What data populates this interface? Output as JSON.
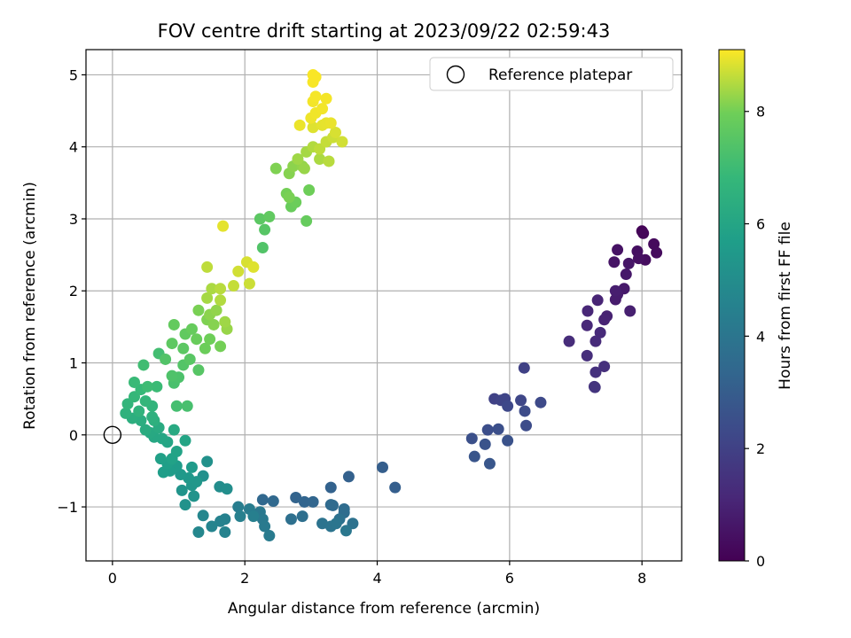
{
  "chart_data": {
    "type": "scatter",
    "title": "FOV centre drift starting at 2023/09/22 02:59:43",
    "xlabel": "Angular distance from reference (arcmin)",
    "ylabel": "Rotation from reference (arcmin)",
    "xlim": [
      -0.4,
      8.6
    ],
    "ylim": [
      -1.75,
      5.35
    ],
    "xticks": [
      0,
      2,
      4,
      6,
      8
    ],
    "yticks": [
      -1,
      0,
      1,
      2,
      3,
      4,
      5
    ],
    "xtick_labels": [
      "0",
      "2",
      "4",
      "6",
      "8"
    ],
    "ytick_labels": [
      "−1",
      "0",
      "1",
      "2",
      "3",
      "4",
      "5"
    ],
    "grid": true,
    "colormap": "viridis",
    "colorbar": {
      "label": "Hours from first FF file",
      "range": [
        0,
        9.1
      ],
      "ticks": [
        0,
        2,
        4,
        6,
        8
      ],
      "tick_labels": [
        "0",
        "2",
        "4",
        "6",
        "8"
      ]
    },
    "legend": {
      "position": "top-right",
      "entries": [
        "Reference platepar"
      ]
    },
    "reference_point": {
      "x": 0,
      "y": 0
    },
    "series": [
      {
        "points": [
          {
            "x": 8.0,
            "y": 2.83,
            "c": 0.1
          },
          {
            "x": 8.02,
            "y": 2.8,
            "c": 0.15
          },
          {
            "x": 8.18,
            "y": 2.65,
            "c": 0.25
          },
          {
            "x": 8.22,
            "y": 2.53,
            "c": 0.3
          },
          {
            "x": 8.05,
            "y": 2.43,
            "c": 0.35
          },
          {
            "x": 7.93,
            "y": 2.55,
            "c": 0.4
          },
          {
            "x": 7.95,
            "y": 2.45,
            "c": 0.45
          },
          {
            "x": 7.63,
            "y": 2.57,
            "c": 0.5
          },
          {
            "x": 7.58,
            "y": 2.4,
            "c": 0.55
          },
          {
            "x": 7.8,
            "y": 2.38,
            "c": 0.6
          },
          {
            "x": 7.76,
            "y": 2.23,
            "c": 0.65
          },
          {
            "x": 7.73,
            "y": 2.03,
            "c": 0.7
          },
          {
            "x": 7.63,
            "y": 1.95,
            "c": 0.75
          },
          {
            "x": 7.6,
            "y": 1.88,
            "c": 0.8
          },
          {
            "x": 7.6,
            "y": 2.0,
            "c": 0.85
          },
          {
            "x": 7.82,
            "y": 1.72,
            "c": 0.9
          },
          {
            "x": 7.47,
            "y": 1.65,
            "c": 0.95
          },
          {
            "x": 7.43,
            "y": 1.6,
            "c": 1.0
          },
          {
            "x": 7.33,
            "y": 1.87,
            "c": 1.05
          },
          {
            "x": 7.18,
            "y": 1.72,
            "c": 1.1
          },
          {
            "x": 7.17,
            "y": 1.52,
            "c": 1.15
          },
          {
            "x": 7.37,
            "y": 1.42,
            "c": 1.2
          },
          {
            "x": 7.3,
            "y": 1.3,
            "c": 1.25
          },
          {
            "x": 6.9,
            "y": 1.3,
            "c": 1.3
          },
          {
            "x": 7.17,
            "y": 1.1,
            "c": 1.35
          },
          {
            "x": 7.43,
            "y": 0.95,
            "c": 1.4
          },
          {
            "x": 7.3,
            "y": 0.87,
            "c": 1.45
          },
          {
            "x": 7.28,
            "y": 0.67,
            "c": 1.5
          },
          {
            "x": 7.29,
            "y": 0.66,
            "c": 1.55
          },
          {
            "x": 6.22,
            "y": 0.93,
            "c": 2.0
          },
          {
            "x": 5.77,
            "y": 0.5,
            "c": 2.05
          },
          {
            "x": 5.87,
            "y": 0.48,
            "c": 2.1
          },
          {
            "x": 5.93,
            "y": 0.5,
            "c": 2.15
          },
          {
            "x": 6.17,
            "y": 0.48,
            "c": 2.2
          },
          {
            "x": 5.97,
            "y": 0.4,
            "c": 2.25
          },
          {
            "x": 6.47,
            "y": 0.45,
            "c": 2.3
          },
          {
            "x": 6.23,
            "y": 0.33,
            "c": 2.35
          },
          {
            "x": 6.25,
            "y": 0.13,
            "c": 2.4
          },
          {
            "x": 5.67,
            "y": 0.07,
            "c": 2.45
          },
          {
            "x": 5.83,
            "y": 0.08,
            "c": 2.5
          },
          {
            "x": 5.43,
            "y": -0.05,
            "c": 2.55
          },
          {
            "x": 5.97,
            "y": -0.08,
            "c": 2.6
          },
          {
            "x": 5.63,
            "y": -0.13,
            "c": 2.65
          },
          {
            "x": 5.47,
            "y": -0.3,
            "c": 2.7
          },
          {
            "x": 5.7,
            "y": -0.4,
            "c": 2.75
          },
          {
            "x": 4.08,
            "y": -0.45,
            "c": 3.05
          },
          {
            "x": 4.27,
            "y": -0.73,
            "c": 3.1
          },
          {
            "x": 3.57,
            "y": -0.58,
            "c": 3.15
          },
          {
            "x": 3.3,
            "y": -0.73,
            "c": 3.2
          },
          {
            "x": 2.77,
            "y": -0.87,
            "c": 3.25
          },
          {
            "x": 2.9,
            "y": -0.93,
            "c": 3.3
          },
          {
            "x": 3.03,
            "y": -0.93,
            "c": 3.35
          },
          {
            "x": 2.27,
            "y": -0.9,
            "c": 3.4
          },
          {
            "x": 2.43,
            "y": -0.92,
            "c": 3.45
          },
          {
            "x": 3.3,
            "y": -0.97,
            "c": 3.5
          },
          {
            "x": 3.33,
            "y": -0.98,
            "c": 3.55
          },
          {
            "x": 3.5,
            "y": -1.03,
            "c": 3.6
          },
          {
            "x": 3.5,
            "y": -1.08,
            "c": 3.65
          },
          {
            "x": 2.87,
            "y": -1.13,
            "c": 3.7
          },
          {
            "x": 2.7,
            "y": -1.17,
            "c": 3.75
          },
          {
            "x": 3.43,
            "y": -1.17,
            "c": 3.8
          },
          {
            "x": 3.63,
            "y": -1.23,
            "c": 3.85
          },
          {
            "x": 3.17,
            "y": -1.23,
            "c": 3.9
          },
          {
            "x": 3.3,
            "y": -1.27,
            "c": 3.95
          },
          {
            "x": 3.38,
            "y": -1.23,
            "c": 4.0
          },
          {
            "x": 3.53,
            "y": -1.33,
            "c": 4.05
          },
          {
            "x": 2.23,
            "y": -1.07,
            "c": 4.1
          },
          {
            "x": 2.27,
            "y": -1.17,
            "c": 4.15
          },
          {
            "x": 2.3,
            "y": -1.27,
            "c": 4.2
          },
          {
            "x": 2.37,
            "y": -1.4,
            "c": 4.25
          },
          {
            "x": 2.07,
            "y": -1.03,
            "c": 4.3
          },
          {
            "x": 1.9,
            "y": -1.0,
            "c": 4.35
          },
          {
            "x": 2.13,
            "y": -1.13,
            "c": 4.4
          },
          {
            "x": 1.93,
            "y": -1.13,
            "c": 4.45
          },
          {
            "x": 1.7,
            "y": -1.17,
            "c": 4.5
          },
          {
            "x": 1.63,
            "y": -1.2,
            "c": 4.55
          },
          {
            "x": 1.7,
            "y": -1.35,
            "c": 4.6
          },
          {
            "x": 1.5,
            "y": -1.27,
            "c": 4.65
          },
          {
            "x": 1.37,
            "y": -1.12,
            "c": 4.7
          },
          {
            "x": 1.3,
            "y": -1.35,
            "c": 4.75
          },
          {
            "x": 1.62,
            "y": -0.72,
            "c": 5.0
          },
          {
            "x": 1.73,
            "y": -0.75,
            "c": 5.05
          },
          {
            "x": 1.37,
            "y": -0.57,
            "c": 5.1
          },
          {
            "x": 1.43,
            "y": -0.37,
            "c": 5.15
          },
          {
            "x": 1.1,
            "y": -0.97,
            "c": 5.2
          },
          {
            "x": 1.23,
            "y": -0.85,
            "c": 5.25
          },
          {
            "x": 1.05,
            "y": -0.77,
            "c": 5.3
          },
          {
            "x": 1.2,
            "y": -0.7,
            "c": 5.35
          },
          {
            "x": 1.27,
            "y": -0.65,
            "c": 5.4
          },
          {
            "x": 1.15,
            "y": -0.6,
            "c": 5.45
          },
          {
            "x": 1.03,
            "y": -0.55,
            "c": 5.5
          },
          {
            "x": 1.2,
            "y": -0.45,
            "c": 5.55
          },
          {
            "x": 0.97,
            "y": -0.43,
            "c": 5.6
          },
          {
            "x": 0.87,
            "y": -0.5,
            "c": 5.65
          },
          {
            "x": 0.77,
            "y": -0.52,
            "c": 5.7
          },
          {
            "x": 0.83,
            "y": -0.4,
            "c": 5.75
          },
          {
            "x": 0.73,
            "y": -0.33,
            "c": 5.8
          },
          {
            "x": 0.9,
            "y": -0.33,
            "c": 5.85
          },
          {
            "x": 0.97,
            "y": -0.23,
            "c": 5.9
          },
          {
            "x": 1.1,
            "y": -0.08,
            "c": 5.95
          },
          {
            "x": 0.83,
            "y": -0.1,
            "c": 6.0
          },
          {
            "x": 0.75,
            "y": -0.05,
            "c": 6.05
          },
          {
            "x": 0.63,
            "y": -0.03,
            "c": 6.1
          },
          {
            "x": 0.57,
            "y": 0.03,
            "c": 6.15
          },
          {
            "x": 0.93,
            "y": 0.07,
            "c": 6.2
          },
          {
            "x": 0.7,
            "y": 0.1,
            "c": 6.25
          },
          {
            "x": 0.5,
            "y": 0.07,
            "c": 6.3
          },
          {
            "x": 0.43,
            "y": 0.2,
            "c": 6.35
          },
          {
            "x": 0.3,
            "y": 0.23,
            "c": 6.4
          },
          {
            "x": 0.63,
            "y": 0.2,
            "c": 6.45
          },
          {
            "x": 0.6,
            "y": 0.25,
            "c": 6.5
          },
          {
            "x": 0.2,
            "y": 0.3,
            "c": 6.55
          },
          {
            "x": 0.4,
            "y": 0.33,
            "c": 6.6
          },
          {
            "x": 0.6,
            "y": 0.4,
            "c": 6.65
          },
          {
            "x": 0.23,
            "y": 0.43,
            "c": 6.7
          },
          {
            "x": 0.5,
            "y": 0.47,
            "c": 6.75
          },
          {
            "x": 0.33,
            "y": 0.53,
            "c": 6.8
          },
          {
            "x": 0.43,
            "y": 0.63,
            "c": 6.85
          },
          {
            "x": 0.33,
            "y": 0.73,
            "c": 6.9
          },
          {
            "x": 0.67,
            "y": 0.67,
            "c": 6.95
          },
          {
            "x": 0.53,
            "y": 0.67,
            "c": 7.0
          },
          {
            "x": 0.47,
            "y": 0.97,
            "c": 7.05
          },
          {
            "x": 0.7,
            "y": 1.13,
            "c": 7.1
          },
          {
            "x": 0.97,
            "y": 0.4,
            "c": 7.15
          },
          {
            "x": 1.13,
            "y": 0.4,
            "c": 7.2
          },
          {
            "x": 0.93,
            "y": 0.72,
            "c": 7.25
          },
          {
            "x": 1.0,
            "y": 0.8,
            "c": 7.3
          },
          {
            "x": 0.9,
            "y": 0.82,
            "c": 7.35
          },
          {
            "x": 0.8,
            "y": 1.05,
            "c": 7.4
          },
          {
            "x": 1.07,
            "y": 0.97,
            "c": 7.45
          },
          {
            "x": 1.3,
            "y": 0.9,
            "c": 7.5
          },
          {
            "x": 1.17,
            "y": 1.05,
            "c": 7.55
          },
          {
            "x": 1.07,
            "y": 1.2,
            "c": 7.6
          },
          {
            "x": 0.9,
            "y": 1.27,
            "c": 7.65
          },
          {
            "x": 1.1,
            "y": 1.4,
            "c": 7.7
          },
          {
            "x": 0.93,
            "y": 1.53,
            "c": 7.75
          },
          {
            "x": 1.2,
            "y": 1.47,
            "c": 7.8
          },
          {
            "x": 1.27,
            "y": 1.33,
            "c": 7.85
          },
          {
            "x": 1.4,
            "y": 1.2,
            "c": 7.9
          },
          {
            "x": 1.47,
            "y": 1.33,
            "c": 7.95
          },
          {
            "x": 1.63,
            "y": 1.23,
            "c": 8.0
          },
          {
            "x": 1.3,
            "y": 1.73,
            "c": 8.05
          },
          {
            "x": 1.43,
            "y": 1.6,
            "c": 8.1
          },
          {
            "x": 1.53,
            "y": 1.53,
            "c": 8.15
          },
          {
            "x": 1.47,
            "y": 1.67,
            "c": 8.2
          },
          {
            "x": 1.57,
            "y": 1.73,
            "c": 8.25
          },
          {
            "x": 1.73,
            "y": 1.47,
            "c": 8.3
          },
          {
            "x": 1.7,
            "y": 1.57,
            "c": 8.35
          },
          {
            "x": 1.43,
            "y": 1.9,
            "c": 8.4
          },
          {
            "x": 1.5,
            "y": 2.03,
            "c": 8.45
          },
          {
            "x": 1.63,
            "y": 1.87,
            "c": 8.5
          },
          {
            "x": 1.63,
            "y": 2.03,
            "c": 8.55
          },
          {
            "x": 1.43,
            "y": 2.33,
            "c": 8.6
          },
          {
            "x": 1.83,
            "y": 2.07,
            "c": 8.65
          },
          {
            "x": 2.07,
            "y": 2.1,
            "c": 8.7
          },
          {
            "x": 1.9,
            "y": 2.27,
            "c": 8.75
          },
          {
            "x": 2.03,
            "y": 2.4,
            "c": 8.8
          },
          {
            "x": 2.13,
            "y": 2.33,
            "c": 8.85
          },
          {
            "x": 1.67,
            "y": 2.9,
            "c": 8.9
          }
        ]
      },
      {
        "points": [
          {
            "x": 2.27,
            "y": 2.6,
            "c": 7.4
          },
          {
            "x": 2.3,
            "y": 2.85,
            "c": 7.5
          },
          {
            "x": 2.23,
            "y": 3.0,
            "c": 7.6
          },
          {
            "x": 2.37,
            "y": 3.03,
            "c": 7.7
          },
          {
            "x": 2.93,
            "y": 2.97,
            "c": 7.8
          },
          {
            "x": 2.7,
            "y": 3.17,
            "c": 7.85
          },
          {
            "x": 2.77,
            "y": 3.23,
            "c": 7.9
          },
          {
            "x": 2.97,
            "y": 3.4,
            "c": 7.95
          },
          {
            "x": 2.63,
            "y": 3.35,
            "c": 8.0
          },
          {
            "x": 2.67,
            "y": 3.3,
            "c": 8.05
          },
          {
            "x": 2.47,
            "y": 3.7,
            "c": 8.1
          },
          {
            "x": 2.67,
            "y": 3.63,
            "c": 8.15
          },
          {
            "x": 2.73,
            "y": 3.73,
            "c": 8.2
          },
          {
            "x": 2.87,
            "y": 3.73,
            "c": 8.25
          },
          {
            "x": 2.9,
            "y": 3.7,
            "c": 8.3
          },
          {
            "x": 2.8,
            "y": 3.83,
            "c": 8.35
          },
          {
            "x": 2.93,
            "y": 3.93,
            "c": 8.4
          },
          {
            "x": 3.13,
            "y": 3.83,
            "c": 8.45
          },
          {
            "x": 3.03,
            "y": 4.0,
            "c": 8.5
          },
          {
            "x": 3.27,
            "y": 3.8,
            "c": 8.55
          },
          {
            "x": 3.13,
            "y": 3.97,
            "c": 8.6
          },
          {
            "x": 3.23,
            "y": 4.07,
            "c": 8.65
          },
          {
            "x": 3.33,
            "y": 4.13,
            "c": 8.7
          },
          {
            "x": 3.47,
            "y": 4.07,
            "c": 8.75
          },
          {
            "x": 3.37,
            "y": 4.2,
            "c": 8.8
          },
          {
            "x": 3.03,
            "y": 4.27,
            "c": 8.85
          },
          {
            "x": 3.17,
            "y": 4.3,
            "c": 8.9
          },
          {
            "x": 3.23,
            "y": 4.33,
            "c": 8.92
          },
          {
            "x": 3.3,
            "y": 4.33,
            "c": 8.94
          },
          {
            "x": 2.83,
            "y": 4.3,
            "c": 8.96
          },
          {
            "x": 3.0,
            "y": 4.4,
            "c": 8.98
          },
          {
            "x": 3.07,
            "y": 4.47,
            "c": 9.0
          },
          {
            "x": 3.17,
            "y": 4.53,
            "c": 9.01
          },
          {
            "x": 3.03,
            "y": 4.63,
            "c": 9.02
          },
          {
            "x": 3.23,
            "y": 4.67,
            "c": 9.03
          },
          {
            "x": 3.07,
            "y": 4.7,
            "c": 9.04
          },
          {
            "x": 3.03,
            "y": 4.9,
            "c": 9.05
          },
          {
            "x": 3.07,
            "y": 4.97,
            "c": 9.06
          },
          {
            "x": 3.03,
            "y": 5.0,
            "c": 9.07
          }
        ]
      }
    ]
  }
}
